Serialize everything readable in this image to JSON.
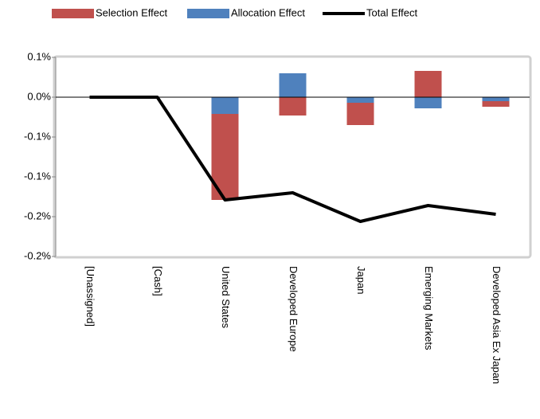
{
  "chart_data": {
    "type": "stacked-bar-line",
    "categories": [
      "[Unassigned]",
      "[Cash]",
      "United States",
      "Developed Europe",
      "Japan",
      "Emerging Markets",
      "Developed Asia Ex Japan"
    ],
    "series": [
      {
        "name": "Selection Effect",
        "color": "#c0504d",
        "kind": "bar",
        "values": [
          0,
          0,
          -0.108,
          -0.023,
          -0.028,
          0.033,
          -0.007
        ]
      },
      {
        "name": "Allocation Effect",
        "color": "#4f81bd",
        "kind": "bar",
        "values": [
          0,
          0,
          -0.021,
          0.03,
          -0.007,
          -0.014,
          -0.005
        ]
      },
      {
        "name": "Total Effect",
        "color": "#000000",
        "kind": "line",
        "values": [
          0,
          0,
          -0.129,
          -0.12,
          -0.156,
          -0.136,
          -0.147
        ]
      }
    ],
    "stack_order": [
      "Allocation Effect",
      "Selection Effect"
    ],
    "ylim": [
      -0.2,
      0.05
    ],
    "yticks": [
      {
        "value": 0.05,
        "label": "0.1%"
      },
      {
        "value": 0,
        "label": "0.0%"
      },
      {
        "value": -0.05,
        "label": "-0.1%"
      },
      {
        "value": -0.1,
        "label": "-0.1%"
      },
      {
        "value": -0.15,
        "label": "-0.2%"
      },
      {
        "value": -0.2,
        "label": "-0.2%"
      }
    ],
    "legend_position": "top"
  }
}
